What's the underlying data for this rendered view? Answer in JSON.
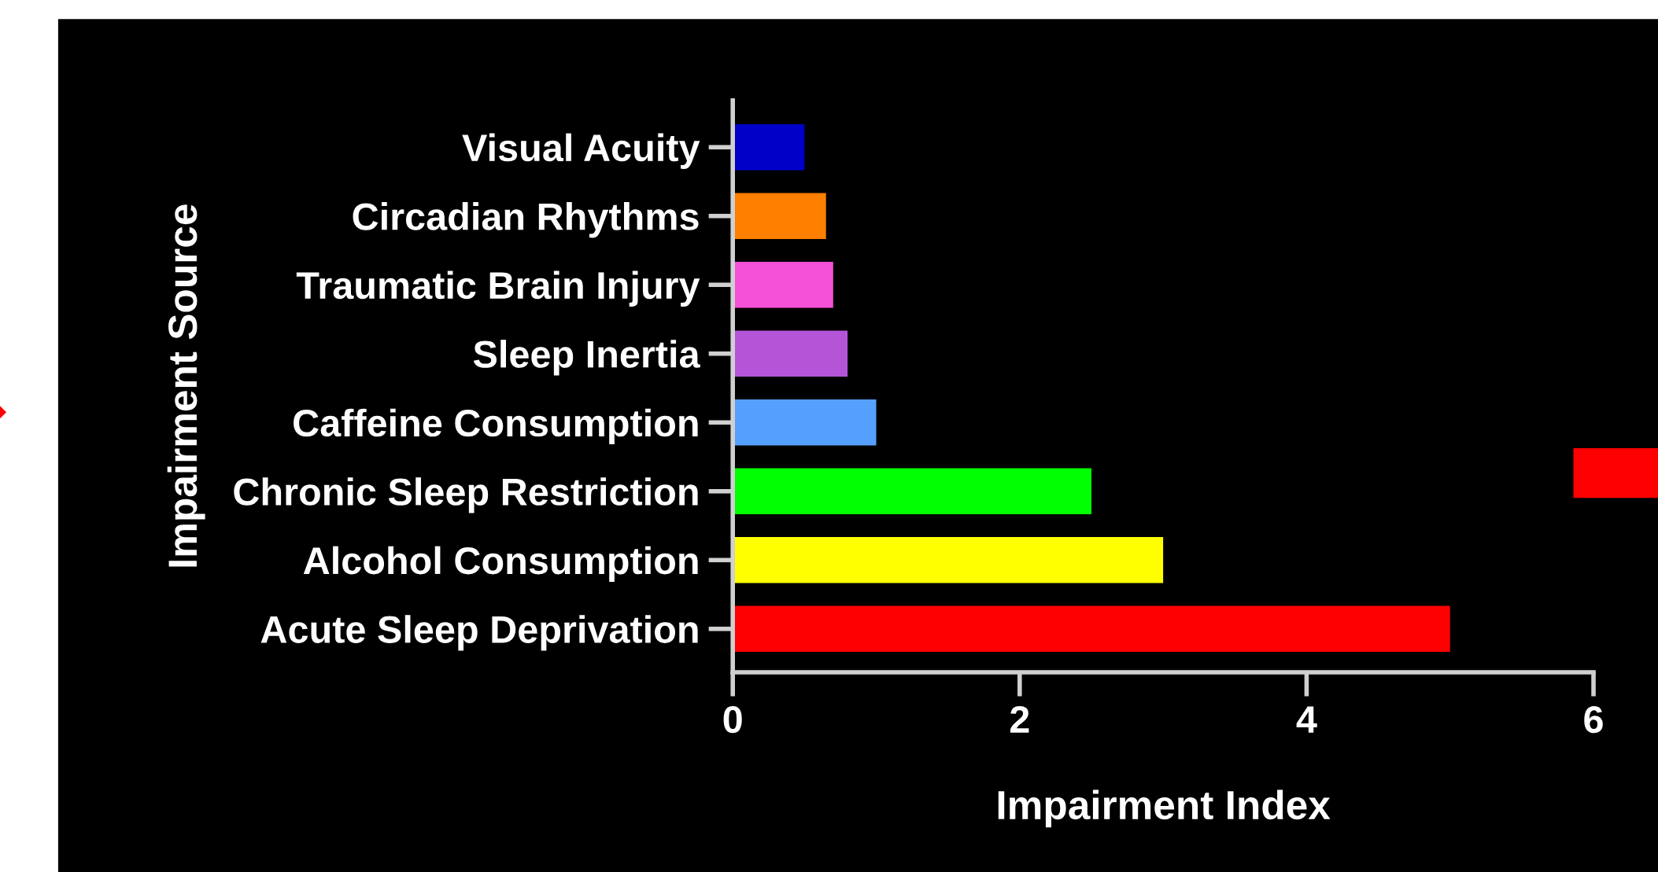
{
  "chart_data": {
    "type": "bar",
    "orientation": "horizontal",
    "xlabel": "Impairment Index",
    "ylabel": "Impairment Source",
    "categories": [
      "Visual Acuity",
      "Circadian Rhythms",
      "Traumatic Brain Injury",
      "Sleep Inertia",
      "Caffeine Consumption",
      "Chronic Sleep Restriction",
      "Alcohol Consumption",
      "Acute Sleep Deprivation"
    ],
    "values": [
      0.5,
      0.65,
      0.7,
      0.8,
      1.0,
      2.5,
      3.0,
      5.0
    ],
    "colors": [
      "#0000c8",
      "#ff7f00",
      "#f550d8",
      "#b455d8",
      "#55a0ff",
      "#00ff00",
      "#ffff00",
      "#ff0000"
    ],
    "xlim": [
      0,
      6
    ],
    "xticks": [
      0,
      2,
      4,
      6
    ],
    "grid": false
  }
}
